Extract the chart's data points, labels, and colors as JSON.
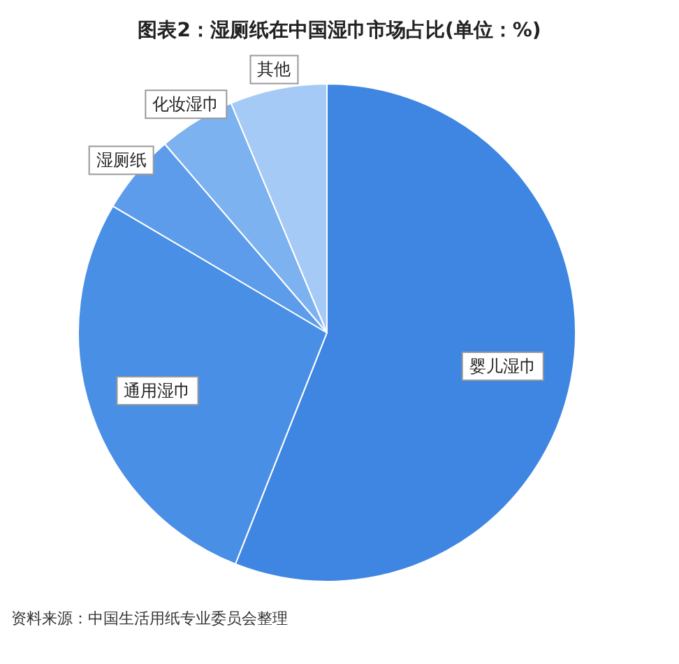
{
  "chart_data": {
    "type": "pie",
    "title": "图表2：湿厕纸在中国湿巾市场占比(单位：%)",
    "categories": [
      "婴儿湿巾",
      "通用湿巾",
      "湿厕纸",
      "化妆湿巾",
      "其他"
    ],
    "values": [
      56,
      27.5,
      5.2,
      5,
      6.3
    ],
    "colors": [
      "#3e86e2",
      "#4a8fe6",
      "#5c9cea",
      "#7db2f0",
      "#a6caf6"
    ],
    "annotations": [
      "资料来源：中国生活用纸专业委员会整理"
    ]
  }
}
